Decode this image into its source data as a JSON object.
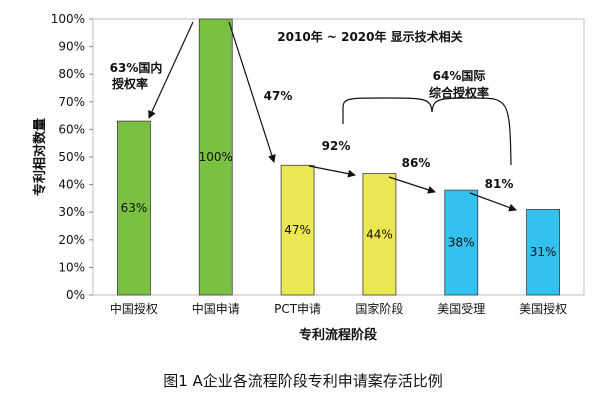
{
  "chart_data": {
    "type": "bar",
    "categories": [
      "中国授权",
      "中国申请",
      "PCT申请",
      "国家阶段",
      "美国受理",
      "美国授权"
    ],
    "values": [
      63,
      100,
      47,
      44,
      38,
      31
    ],
    "data_labels": [
      "63%",
      "100%",
      "47%",
      "44%",
      "38%",
      "31%"
    ],
    "bar_colors": [
      "#7ac143",
      "#7ac143",
      "#ece854",
      "#ece854",
      "#33c2ef",
      "#33c2ef"
    ],
    "ylim": [
      0,
      100
    ],
    "yticks": [
      0,
      10,
      20,
      30,
      40,
      50,
      60,
      70,
      80,
      90,
      100
    ],
    "ytick_labels": [
      "0%",
      "10%",
      "20%",
      "30%",
      "40%",
      "50%",
      "60%",
      "70%",
      "80%",
      "90%",
      "100%"
    ],
    "xlabel": "专利流程阶段",
    "ylabel": "专利相对数量",
    "title": "",
    "grid": false,
    "annotations": {
      "period_line": "2010年 ~ 2020年 显示技术相关",
      "domestic_rate_line1": "63%国内",
      "domestic_rate_line2": "授权率",
      "pct_ratio": "47%",
      "national_phase_ratio": "92%",
      "us_accept_ratio": "86%",
      "us_grant_ratio": "81%",
      "intl_rate_line1": "64%国际",
      "intl_rate_line2": "综合授权率"
    }
  },
  "caption": "图1  A企业各流程阶段专利申请案存活比例"
}
